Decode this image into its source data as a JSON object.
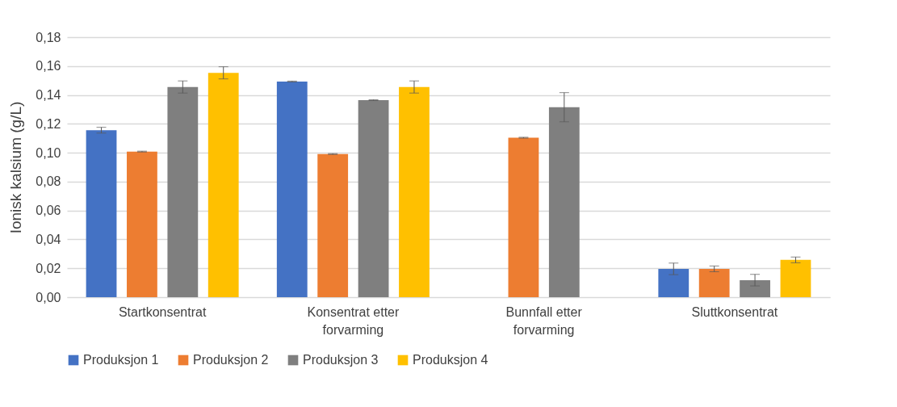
{
  "chart_data": {
    "type": "bar",
    "ylabel": "Ionisk kalsium (g/L)",
    "categories": [
      "Startkonsentrat",
      "Konsentrat etter forvarming",
      "Bunnfall etter forvarming",
      "Sluttkonsentrat"
    ],
    "series": [
      {
        "name": "Produksjon 1",
        "color": "#4472c4",
        "values": [
          0.1156,
          0.1493,
          null,
          0.0196
        ],
        "errors": [
          0.002,
          0.0003,
          null,
          0.004
        ]
      },
      {
        "name": "Produksjon 2",
        "color": "#ed7d31",
        "values": [
          0.1008,
          0.0991,
          0.1104,
          0.0196
        ],
        "errors": [
          0.0003,
          0.0003,
          0.0003,
          0.002
        ]
      },
      {
        "name": "Produksjon 3",
        "color": "#7f7f7f",
        "values": [
          0.1455,
          0.1364,
          0.1315,
          0.0118
        ],
        "errors": [
          0.0042,
          0.0003,
          0.0101,
          0.004
        ]
      },
      {
        "name": "Produksjon 4",
        "color": "#ffc000",
        "values": [
          0.1553,
          0.1455,
          null,
          0.0258
        ],
        "errors": [
          0.0042,
          0.0042,
          null,
          0.002
        ]
      }
    ],
    "ylim": [
      0,
      0.18
    ],
    "yticks": [
      {
        "value": 0,
        "label": "0,00"
      },
      {
        "value": 0.02,
        "label": "0,02"
      },
      {
        "value": 0.04,
        "label": "0,04"
      },
      {
        "value": 0.06,
        "label": "0,06"
      },
      {
        "value": 0.08,
        "label": "0,08"
      },
      {
        "value": 0.1,
        "label": "0,10"
      },
      {
        "value": 0.12,
        "label": "0,12"
      },
      {
        "value": 0.14,
        "label": "0,14"
      },
      {
        "value": 0.16,
        "label": "0,16"
      },
      {
        "value": 0.18,
        "label": "0,18"
      }
    ],
    "grid": "y",
    "legend": "bottom"
  }
}
